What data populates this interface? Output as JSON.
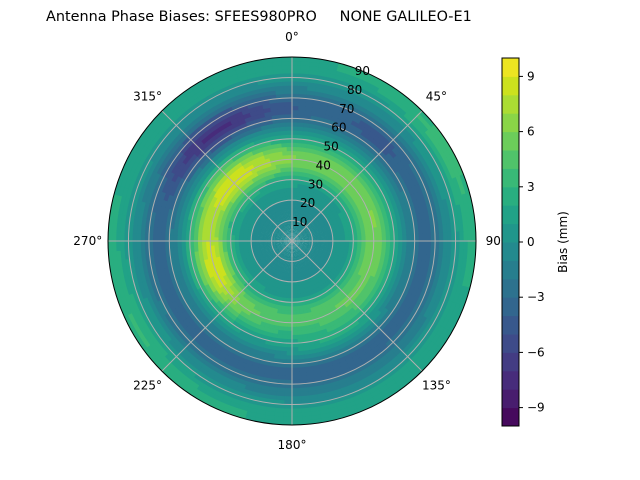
{
  "chart_data": {
    "type": "heatmap",
    "subtype": "polar_contourf",
    "title": "Antenna Phase Biases: SFEES980PRO     NONE GALILEO-E1",
    "theta_zero_location": "N",
    "theta_direction": "clockwise",
    "theta_tick_labels": [
      "0°",
      "45°",
      "90°",
      "135°",
      "180°",
      "225°",
      "270°",
      "315°"
    ],
    "theta_ticks_deg": [
      0,
      45,
      90,
      135,
      180,
      225,
      270,
      315
    ],
    "r_tick_labels": [
      "10",
      "20",
      "30",
      "40",
      "50",
      "60",
      "70",
      "80",
      "90"
    ],
    "r_ticks": [
      10,
      20,
      30,
      40,
      50,
      60,
      70,
      80,
      90
    ],
    "r_label_angle_deg": 22.5,
    "rlim": [
      0,
      90
    ],
    "grid": true,
    "colormap": "viridis",
    "colorbar": {
      "label": "Bias (mm)",
      "vmin": -10,
      "vmax": 10,
      "levels": 20,
      "tick_values": [
        9,
        6,
        3,
        0,
        -3,
        -6,
        -9
      ],
      "tick_labels": [
        "9",
        "6",
        "3",
        "0",
        "−3",
        "−6",
        "−9"
      ]
    },
    "features": [
      {
        "description": "center low-bias zone",
        "r": [
          0,
          20
        ],
        "bias_mm": -1
      },
      {
        "description": "high-bias ring",
        "r": [
          30,
          50
        ],
        "bias_mm": 6
      },
      {
        "description": "peak (upper-left)",
        "theta_deg": 315,
        "r": 42,
        "bias_mm": 9
      },
      {
        "description": "peak (left-lower)",
        "theta_deg": 250,
        "r": 40,
        "bias_mm": 9
      },
      {
        "description": "moderate high (right)",
        "theta_deg": 75,
        "r": 42,
        "bias_mm": 6
      },
      {
        "description": "low band",
        "r": [
          55,
          72
        ],
        "bias_mm": -3
      },
      {
        "description": "minimum (upper-left)",
        "theta_deg": 325,
        "r": 65,
        "bias_mm": -7
      },
      {
        "description": "outer rim",
        "r": [
          80,
          90
        ],
        "bias_mm": 2
      }
    ]
  }
}
